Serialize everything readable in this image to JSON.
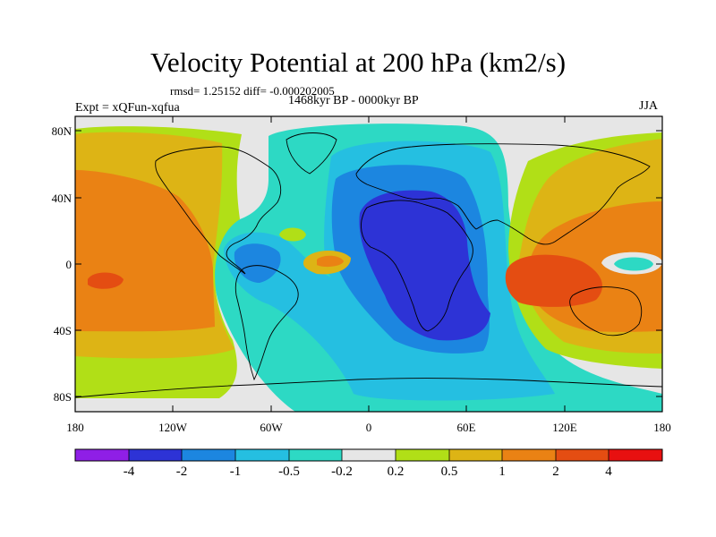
{
  "title": "Velocity Potential at 200 hPa (km2/s)",
  "stats_line": "rmsd= 1.25152  diff= -0.000202005",
  "period": "1468kyr BP - 0000kyr BP",
  "experiment": "Expt = xQFun-xqfua",
  "season": "JJA",
  "y_axis_labels": [
    "80N",
    "40N",
    "0",
    "40S",
    "80S"
  ],
  "x_axis_labels": [
    "180",
    "120W",
    "60W",
    "0",
    "60E",
    "120E",
    "180"
  ],
  "colorbar": {
    "colors": [
      "#8f1fe6",
      "#2d33d6",
      "#1c86e0",
      "#25bfe1",
      "#2dd9c4",
      "#e6e6e6",
      "#b1df17",
      "#ddb415",
      "#ea8214",
      "#e44d12",
      "#e81010"
    ],
    "labels": [
      "-4",
      "-2",
      "-1",
      "-0.5",
      "-0.2",
      "0.2",
      "0.5",
      "1",
      "2",
      "4"
    ]
  },
  "map_colors": {
    "background": "#e6e6e6",
    "neg_weak": "#2dd9c4",
    "neg_mod": "#25bfe1",
    "neg_strong": "#1c86e0",
    "neg_max": "#2d33d6",
    "pos_weak": "#b1df17",
    "pos_mod": "#ddb415",
    "pos_strong": "#ea8214",
    "pos_max": "#e44d12",
    "coast": "#000000"
  }
}
